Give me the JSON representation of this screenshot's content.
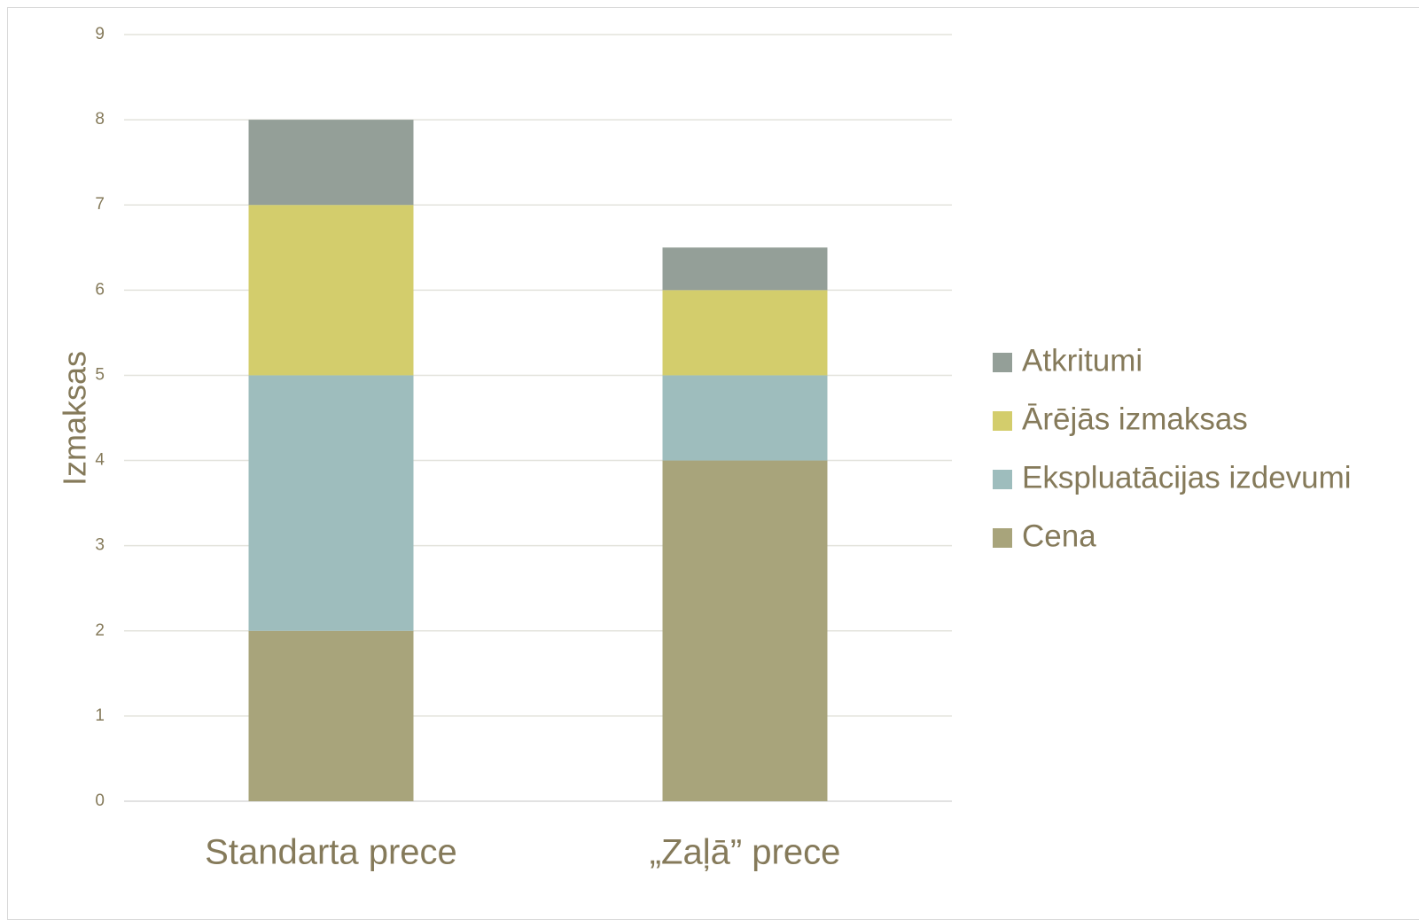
{
  "chart_data": {
    "type": "bar",
    "stacked": true,
    "categories": [
      "Standarta prece",
      "„Zaļā” prece"
    ],
    "series": [
      {
        "name": "Cena",
        "values": [
          2,
          4
        ],
        "color": "#a8a47b"
      },
      {
        "name": "Ekspluatācijas izdevumi",
        "values": [
          3,
          1
        ],
        "color": "#9ebdbd"
      },
      {
        "name": "Ārējās izmaksas",
        "values": [
          2,
          1
        ],
        "color": "#d3cd6c"
      },
      {
        "name": "Atkritumi",
        "values": [
          1,
          0.5
        ],
        "color": "#949f98"
      }
    ],
    "title": "",
    "xlabel": "",
    "ylabel": "Izmaksas",
    "ylim": [
      0,
      9
    ],
    "yticks": [
      "0",
      "1",
      "2",
      "3",
      "4",
      "5",
      "6",
      "7",
      "8",
      "9"
    ],
    "grid": true,
    "legend_position": "right",
    "colors": {
      "text": "#857a5a",
      "gridline": "#e3e3dc",
      "axis": "#d9d9d9"
    }
  }
}
